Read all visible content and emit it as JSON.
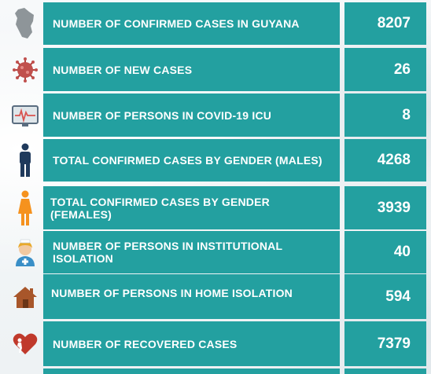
{
  "stats": [
    {
      "label": "NUMBER OF CONFIRMED CASES IN GUYANA",
      "value": "8207",
      "icon": "guyana-map-icon"
    },
    {
      "label": "NUMBER OF NEW CASES",
      "value": "26",
      "icon": "virus-icon"
    },
    {
      "label": "NUMBER OF PERSONS  IN COVID-19 ICU",
      "value": "8",
      "icon": "icu-monitor-icon"
    },
    {
      "label": "TOTAL CONFIRMED CASES BY GENDER (MALES)",
      "value": "4268",
      "icon": "male-icon"
    },
    {
      "label": "TOTAL CONFIRMED CASES BY GENDER (FEMALES)",
      "value": "3939",
      "icon": "female-icon"
    },
    {
      "label": "NUMBER OF PERSONS IN INSTITUTIONAL ISOLATION",
      "value": "40",
      "icon": "nurse-icon"
    },
    {
      "label": "NUMBER OF PERSONS IN HOME ISOLATION",
      "value": "594",
      "icon": "house-icon"
    },
    {
      "label": "NUMBER OF RECOVERED CASES",
      "value": "7379",
      "icon": "recovered-heart-icon"
    }
  ],
  "colors": {
    "teal": "#23a0a0",
    "text": "#ffffff"
  }
}
